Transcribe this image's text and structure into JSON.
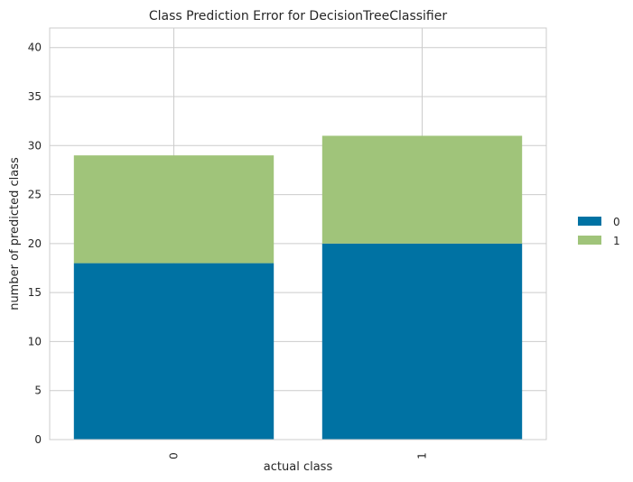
{
  "chart_data": {
    "type": "bar",
    "stacked": true,
    "title": "Class Prediction Error for DecisionTreeClassifier",
    "xlabel": "actual class",
    "ylabel": "number of predicted class",
    "categories": [
      "0",
      "1"
    ],
    "series": [
      {
        "name": "0",
        "values": [
          18,
          20
        ],
        "color": "#0072a3"
      },
      {
        "name": "1",
        "values": [
          11,
          11
        ],
        "color": "#a0c47a"
      }
    ],
    "ylim": [
      0,
      42
    ],
    "yticks": [
      "0",
      "5",
      "10",
      "15",
      "20",
      "25",
      "30",
      "35",
      "40"
    ],
    "grid": true,
    "legend_position": "right"
  }
}
